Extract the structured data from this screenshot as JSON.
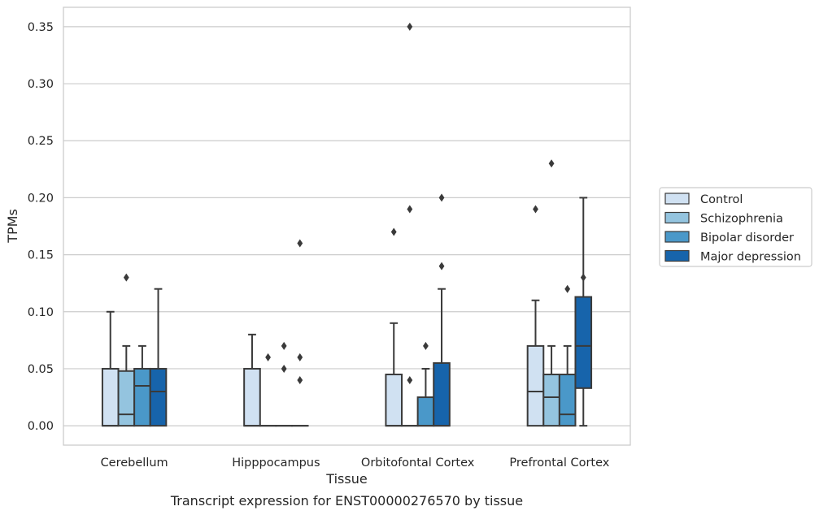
{
  "chart_data": {
    "type": "box",
    "title": "",
    "caption": "Transcript expression for ENST00000276570 by tissue",
    "xlabel": "Tissue",
    "ylabel": "TPMs",
    "ylim": [
      -0.017,
      0.367
    ],
    "yticks": [
      "0.00",
      "0.05",
      "0.10",
      "0.15",
      "0.20",
      "0.25",
      "0.30",
      "0.35"
    ],
    "grid": "horizontal",
    "legend_position": "right",
    "categories": [
      "Cerebellum",
      "Hipppocampus",
      "Orbitofontal Cortex",
      "Prefrontal Cortex"
    ],
    "series": [
      {
        "name": "Control",
        "color": "#d0e1f2",
        "boxes": [
          {
            "min": 0.0,
            "q1": 0.0,
            "median": 0.0,
            "q3": 0.05,
            "max": 0.1,
            "outliers": []
          },
          {
            "min": 0.0,
            "q1": 0.0,
            "median": 0.0,
            "q3": 0.05,
            "max": 0.08,
            "outliers": []
          },
          {
            "min": 0.0,
            "q1": 0.0,
            "median": 0.0,
            "q3": 0.045,
            "max": 0.09,
            "outliers": [
              0.17
            ]
          },
          {
            "min": 0.0,
            "q1": 0.0,
            "median": 0.03,
            "q3": 0.07,
            "max": 0.11,
            "outliers": [
              0.19
            ]
          }
        ]
      },
      {
        "name": "Schizophrenia",
        "color": "#94c4df",
        "boxes": [
          {
            "min": 0.0,
            "q1": 0.0,
            "median": 0.01,
            "q3": 0.048,
            "max": 0.07,
            "outliers": [
              0.13
            ]
          },
          {
            "min": 0.0,
            "q1": 0.0,
            "median": 0.0,
            "q3": 0.0,
            "max": 0.0,
            "outliers": [
              0.06
            ]
          },
          {
            "min": 0.0,
            "q1": 0.0,
            "median": 0.0,
            "q3": 0.0,
            "max": 0.0,
            "outliers": [
              0.04,
              0.19,
              0.35
            ]
          },
          {
            "min": 0.0,
            "q1": 0.0,
            "median": 0.025,
            "q3": 0.045,
            "max": 0.07,
            "outliers": [
              0.23
            ]
          }
        ]
      },
      {
        "name": "Bipolar disorder",
        "color": "#4a98c9",
        "boxes": [
          {
            "min": 0.0,
            "q1": 0.0,
            "median": 0.035,
            "q3": 0.05,
            "max": 0.07,
            "outliers": []
          },
          {
            "min": 0.0,
            "q1": 0.0,
            "median": 0.0,
            "q3": 0.0,
            "max": 0.0,
            "outliers": [
              0.05,
              0.07
            ]
          },
          {
            "min": 0.0,
            "q1": 0.0,
            "median": 0.0,
            "q3": 0.025,
            "max": 0.05,
            "outliers": [
              0.07
            ]
          },
          {
            "min": 0.0,
            "q1": 0.0,
            "median": 0.01,
            "q3": 0.045,
            "max": 0.07,
            "outliers": [
              0.12
            ]
          }
        ]
      },
      {
        "name": "Major depression",
        "color": "#1764ab",
        "boxes": [
          {
            "min": 0.0,
            "q1": 0.0,
            "median": 0.03,
            "q3": 0.05,
            "max": 0.12,
            "outliers": []
          },
          {
            "min": 0.0,
            "q1": 0.0,
            "median": 0.0,
            "q3": 0.0,
            "max": 0.0,
            "outliers": [
              0.04,
              0.06,
              0.16
            ]
          },
          {
            "min": 0.0,
            "q1": 0.0,
            "median": 0.0,
            "q3": 0.055,
            "max": 0.12,
            "outliers": [
              0.14,
              0.2
            ]
          },
          {
            "min": 0.0,
            "q1": 0.033,
            "median": 0.07,
            "q3": 0.113,
            "max": 0.2,
            "outliers": [
              0.13
            ]
          }
        ]
      }
    ]
  },
  "colors": {
    "frame": "#cccccc",
    "grid": "#cccccc",
    "box_edge": "#3a3a3a",
    "text": "#262626"
  }
}
